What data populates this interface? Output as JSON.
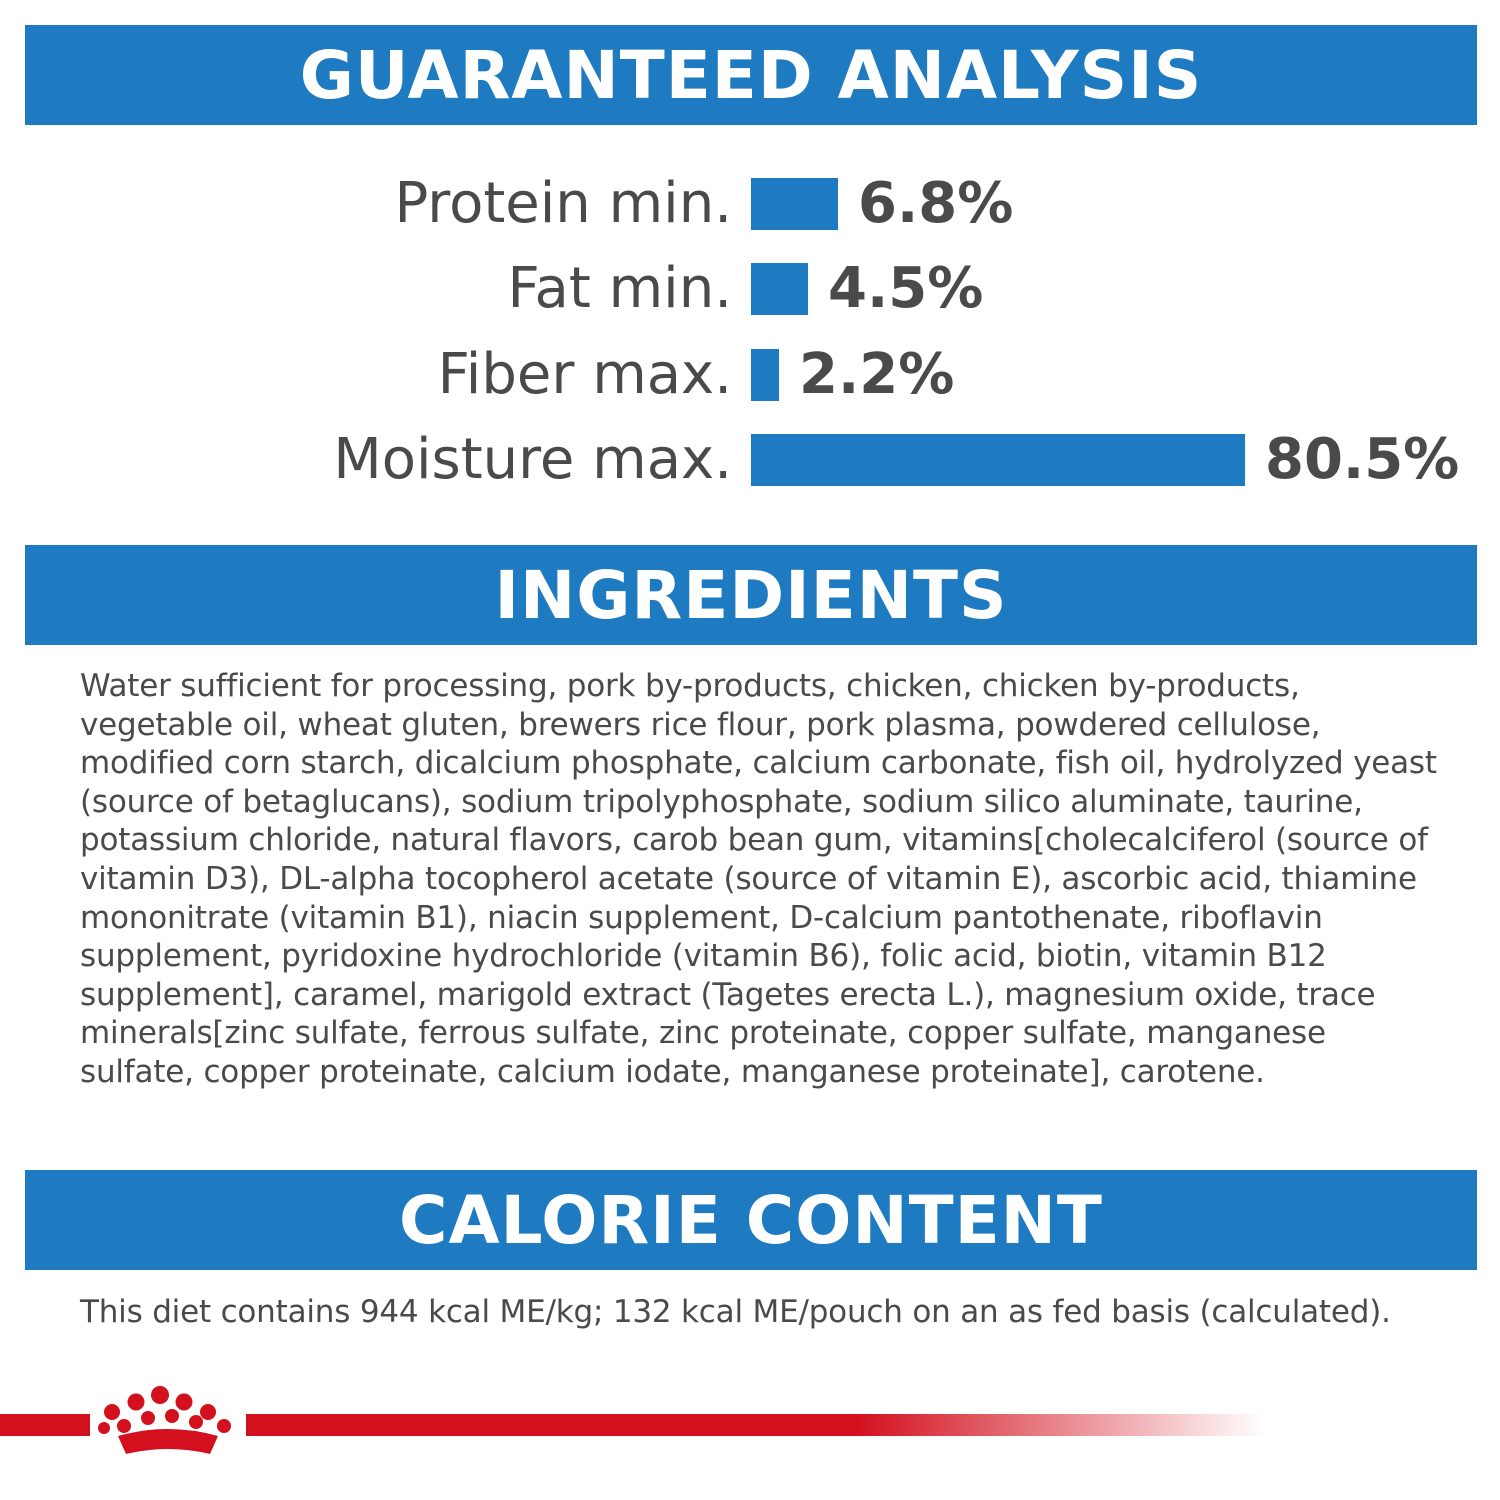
{
  "colors": {
    "banner_blue": "#1f7bc1",
    "bar_blue": "#1f7bc1",
    "text_gray": "#4a4a4a",
    "brand_red": "#d3111e"
  },
  "guaranteed_analysis": {
    "title": "GUARANTEED ANALYSIS",
    "rows": [
      {
        "label": "Protein min.",
        "value": "6.8%",
        "percent": 6.8
      },
      {
        "label": "Fat min.",
        "value": "4.5%",
        "percent": 4.5
      },
      {
        "label": "Fiber max.",
        "value": "2.2%",
        "percent": 2.2
      },
      {
        "label": "Moisture max.",
        "value": "80.5%",
        "percent": 80.5
      }
    ]
  },
  "ingredients": {
    "title": "INGREDIENTS",
    "text": "Water sufficient for processing, pork by-products, chicken, chicken by-products, vegetable oil, wheat gluten, brewers rice flour, pork plasma, powdered cellulose, modified corn starch, dicalcium phosphate, calcium carbonate, fish oil, hydrolyzed yeast (source of betaglucans), sodium tripolyphosphate, sodium silico aluminate, taurine, potassium chloride, natural flavors, carob bean gum, vitamins[cholecalciferol (source of vitamin D3), DL-alpha tocopherol acetate (source of vitamin E), ascorbic acid, thiamine mononitrate (vitamin B1), niacin supplement, D-calcium pantothenate, riboflavin supplement, pyridoxine hydrochloride (vitamin B6), folic acid, biotin, vitamin B12 supplement], caramel, marigold extract (Tagetes erecta L.), magnesium oxide, trace minerals[zinc sulfate, ferrous sulfate, zinc proteinate, copper sulfate, manganese sulfate, copper proteinate, calcium iodate, manganese proteinate], carotene."
  },
  "calorie_content": {
    "title": "CALORIE CONTENT",
    "text": "This diet contains 944 kcal ME/kg; 132 kcal ME/pouch on an as fed basis (calculated)."
  },
  "footer": {
    "logo_icon": "royal-canin-crown-icon"
  }
}
